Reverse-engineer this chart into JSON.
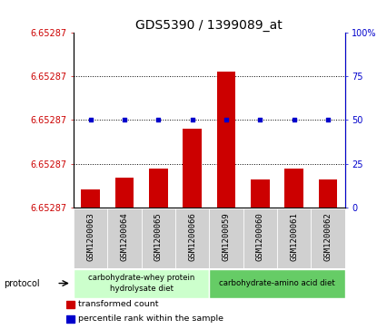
{
  "title": "GDS5390 / 1399089_at",
  "samples": [
    "GSM1200063",
    "GSM1200064",
    "GSM1200065",
    "GSM1200066",
    "GSM1200059",
    "GSM1200060",
    "GSM1200061",
    "GSM1200062"
  ],
  "bar_heights": [
    10,
    17,
    22,
    45,
    78,
    16,
    22,
    16
  ],
  "percentile_ranks": [
    50,
    50,
    50,
    50,
    50,
    50,
    50,
    50
  ],
  "bar_color": "#cc0000",
  "dot_color": "#0000cc",
  "yticks_left": [
    0,
    25,
    50,
    75,
    100
  ],
  "ytick_labels_left": [
    "6.65287",
    "6.65287",
    "6.65287",
    "6.65287",
    "6.65287"
  ],
  "yticks_right": [
    0,
    25,
    50,
    75,
    100
  ],
  "ytick_labels_right": [
    "0",
    "25",
    "50",
    "75",
    "100%"
  ],
  "protocol_label1": "carbohydrate-whey protein\nhydrolysate diet",
  "protocol_label2": "carbohydrate-amino acid diet",
  "protocol_color1": "#ccffcc",
  "protocol_color2": "#66cc66",
  "legend_bar_label": "transformed count",
  "legend_dot_label": "percentile rank within the sample",
  "background_color": "#ffffff",
  "plot_bg_color": "#ffffff",
  "sample_bg_color": "#d0d0d0",
  "title_fontsize": 10,
  "tick_fontsize": 7,
  "sample_fontsize": 6.5
}
